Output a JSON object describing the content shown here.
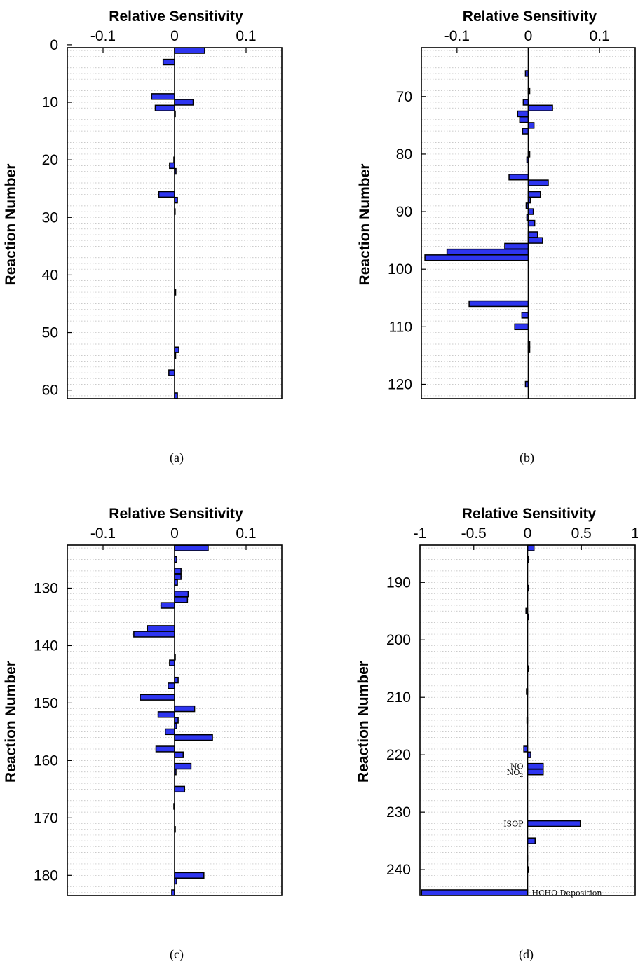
{
  "colors": {
    "bar_fill": "#2e35f0",
    "grid": "#b8b8b8",
    "frame": "#000000"
  },
  "chart_data": [
    {
      "type": "bar",
      "orientation": "horizontal",
      "caption": "(a)",
      "xlabel": "Relative Sensitivity",
      "ylabel": "Reaction Number",
      "xlim": [
        -0.15,
        0.15
      ],
      "ylim": [
        0.5,
        61.5
      ],
      "xticks": [
        -0.1,
        0,
        0.1
      ],
      "xtick_labels": [
        "-0.1",
        "0",
        "0.1"
      ],
      "yticks": [
        0,
        10,
        20,
        30,
        40,
        50,
        60
      ],
      "ytick_labels": [
        "0",
        "10",
        "20",
        "30",
        "40",
        "50",
        "60"
      ],
      "grid": true,
      "bars": [
        {
          "reaction": 1,
          "value": 0.042
        },
        {
          "reaction": 3,
          "value": -0.016
        },
        {
          "reaction": 9,
          "value": -0.032
        },
        {
          "reaction": 10,
          "value": 0.026
        },
        {
          "reaction": 11,
          "value": -0.027
        },
        {
          "reaction": 12,
          "value": 0.001
        },
        {
          "reaction": 20,
          "value": -0.001
        },
        {
          "reaction": 21,
          "value": -0.007
        },
        {
          "reaction": 22,
          "value": 0.002
        },
        {
          "reaction": 26,
          "value": -0.022
        },
        {
          "reaction": 27,
          "value": 0.004
        },
        {
          "reaction": 29,
          "value": 0.0005
        },
        {
          "reaction": 43,
          "value": 0.0015
        },
        {
          "reaction": 53,
          "value": 0.006
        },
        {
          "reaction": 54,
          "value": 0.0015
        },
        {
          "reaction": 57,
          "value": -0.008
        },
        {
          "reaction": 61,
          "value": 0.004
        }
      ]
    },
    {
      "type": "bar",
      "orientation": "horizontal",
      "caption": "(b)",
      "xlabel": "Relative Sensitivity",
      "ylabel": "Reaction Number",
      "xlim": [
        -0.15,
        0.15
      ],
      "ylim": [
        61.5,
        122.5
      ],
      "xticks": [
        -0.1,
        0,
        0.1
      ],
      "xtick_labels": [
        "-0.1",
        "0",
        "0.1"
      ],
      "yticks": [
        70,
        80,
        90,
        100,
        110,
        120
      ],
      "ytick_labels": [
        "70",
        "80",
        "90",
        "100",
        "110",
        "120"
      ],
      "grid": true,
      "bars": [
        {
          "reaction": 66,
          "value": -0.004
        },
        {
          "reaction": 69,
          "value": 0.002
        },
        {
          "reaction": 71,
          "value": -0.007
        },
        {
          "reaction": 72,
          "value": 0.034
        },
        {
          "reaction": 73,
          "value": -0.015
        },
        {
          "reaction": 74,
          "value": -0.012
        },
        {
          "reaction": 75,
          "value": 0.008
        },
        {
          "reaction": 76,
          "value": -0.008
        },
        {
          "reaction": 80,
          "value": 0.002
        },
        {
          "reaction": 81,
          "value": -0.002
        },
        {
          "reaction": 84,
          "value": -0.027
        },
        {
          "reaction": 85,
          "value": 0.028
        },
        {
          "reaction": 87,
          "value": 0.017
        },
        {
          "reaction": 88,
          "value": 0.003
        },
        {
          "reaction": 89,
          "value": -0.003
        },
        {
          "reaction": 90,
          "value": 0.007
        },
        {
          "reaction": 91,
          "value": -0.002
        },
        {
          "reaction": 92,
          "value": 0.009
        },
        {
          "reaction": 94,
          "value": 0.013
        },
        {
          "reaction": 95,
          "value": 0.02
        },
        {
          "reaction": 96,
          "value": -0.033
        },
        {
          "reaction": 97,
          "value": -0.114
        },
        {
          "reaction": 98,
          "value": -0.145
        },
        {
          "reaction": 106,
          "value": -0.083
        },
        {
          "reaction": 108,
          "value": -0.009
        },
        {
          "reaction": 110,
          "value": -0.019
        },
        {
          "reaction": 113,
          "value": 0.002
        },
        {
          "reaction": 114,
          "value": 0.002
        },
        {
          "reaction": 120,
          "value": -0.004
        }
      ]
    },
    {
      "type": "bar",
      "orientation": "horizontal",
      "caption": "(c)",
      "xlabel": "Relative Sensitivity",
      "ylabel": "Reaction Number",
      "xlim": [
        -0.15,
        0.15
      ],
      "ylim": [
        122.5,
        183.5
      ],
      "xticks": [
        -0.1,
        0,
        0.1
      ],
      "xtick_labels": [
        "-0.1",
        "0",
        "0.1"
      ],
      "yticks": [
        130,
        140,
        150,
        160,
        170,
        180
      ],
      "ytick_labels": [
        "130",
        "140",
        "150",
        "160",
        "170",
        "180"
      ],
      "grid": true,
      "bars": [
        {
          "reaction": 123,
          "value": 0.047
        },
        {
          "reaction": 125,
          "value": 0.003
        },
        {
          "reaction": 127,
          "value": 0.009
        },
        {
          "reaction": 128,
          "value": 0.009
        },
        {
          "reaction": 129,
          "value": 0.004
        },
        {
          "reaction": 131,
          "value": 0.019
        },
        {
          "reaction": 132,
          "value": 0.018
        },
        {
          "reaction": 133,
          "value": -0.019
        },
        {
          "reaction": 137,
          "value": -0.038
        },
        {
          "reaction": 138,
          "value": -0.057
        },
        {
          "reaction": 142,
          "value": 0.001
        },
        {
          "reaction": 143,
          "value": -0.007
        },
        {
          "reaction": 146,
          "value": 0.005
        },
        {
          "reaction": 147,
          "value": -0.009
        },
        {
          "reaction": 149,
          "value": -0.048
        },
        {
          "reaction": 151,
          "value": 0.028
        },
        {
          "reaction": 152,
          "value": -0.023
        },
        {
          "reaction": 153,
          "value": 0.005
        },
        {
          "reaction": 154,
          "value": 0.003
        },
        {
          "reaction": 155,
          "value": -0.013
        },
        {
          "reaction": 156,
          "value": 0.053
        },
        {
          "reaction": 158,
          "value": -0.026
        },
        {
          "reaction": 159,
          "value": 0.012
        },
        {
          "reaction": 161,
          "value": 0.023
        },
        {
          "reaction": 162,
          "value": 0.002
        },
        {
          "reaction": 165,
          "value": 0.014
        },
        {
          "reaction": 168,
          "value": -0.001
        },
        {
          "reaction": 172,
          "value": 0.001
        },
        {
          "reaction": 180,
          "value": 0.041
        },
        {
          "reaction": 181,
          "value": 0.003
        },
        {
          "reaction": 183,
          "value": -0.004
        }
      ]
    },
    {
      "type": "bar",
      "orientation": "horizontal",
      "caption": "(d)",
      "xlabel": "Relative Sensitivity",
      "ylabel": "Reaction Number",
      "xlim": [
        -1,
        1
      ],
      "ylim": [
        183.5,
        244.5
      ],
      "xticks": [
        -1,
        -0.5,
        0,
        0.5,
        1
      ],
      "xtick_labels": [
        "-1",
        "-0.5",
        "0",
        "0.5",
        "1"
      ],
      "yticks": [
        190,
        200,
        210,
        220,
        230,
        240
      ],
      "ytick_labels": [
        "190",
        "200",
        "210",
        "220",
        "230",
        "240"
      ],
      "grid": true,
      "bars": [
        {
          "reaction": 184,
          "value": 0.06
        },
        {
          "reaction": 186,
          "value": 0.01
        },
        {
          "reaction": 191,
          "value": 0.01
        },
        {
          "reaction": 195,
          "value": -0.015
        },
        {
          "reaction": 196,
          "value": 0.01
        },
        {
          "reaction": 205,
          "value": 0.008
        },
        {
          "reaction": 209,
          "value": -0.01
        },
        {
          "reaction": 214,
          "value": -0.006
        },
        {
          "reaction": 219,
          "value": -0.035
        },
        {
          "reaction": 220,
          "value": 0.03
        },
        {
          "reaction": 222,
          "value": 0.145
        },
        {
          "reaction": 223,
          "value": 0.145
        },
        {
          "reaction": 232,
          "value": 0.49
        },
        {
          "reaction": 235,
          "value": 0.07
        },
        {
          "reaction": 238,
          "value": -0.005
        },
        {
          "reaction": 240,
          "value": 0.005
        },
        {
          "reaction": 244,
          "value": -0.985
        }
      ],
      "annotations": [
        {
          "label": "NO",
          "sub": "",
          "reaction": 222
        },
        {
          "label": "NO",
          "sub": "2",
          "reaction": 223
        },
        {
          "label": "ISOP",
          "sub": "",
          "reaction": 232
        },
        {
          "label": "HCHO Deposition",
          "sub": "",
          "reaction": 244
        }
      ]
    }
  ]
}
